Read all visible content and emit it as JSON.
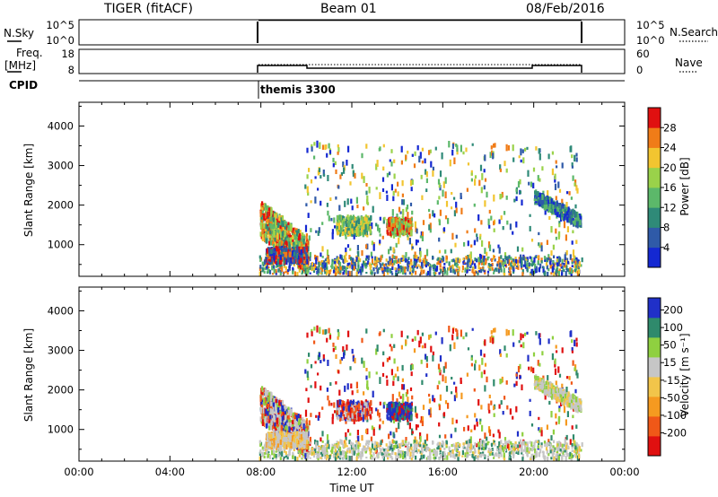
{
  "header": {
    "title": "TIGER (fitACF)",
    "beam": "Beam 01",
    "date": "08/Feb/2016"
  },
  "nsky_panel": {
    "left_label": "N.Sky",
    "right_label": "N.Search",
    "left_ticks": [
      "10^5",
      "10^0"
    ],
    "right_ticks": [
      "10^5",
      "10^0"
    ]
  },
  "freq_panel": {
    "left_label_line1": "Freq.",
    "left_label_line2": "[MHz]",
    "right_label": "Nave",
    "left_ticks": [
      "18",
      "8"
    ],
    "right_ticks": [
      "60",
      "0"
    ]
  },
  "cpid": {
    "label": "CPID",
    "program": "themis 3300"
  },
  "colors": {
    "power_scale": [
      "#1428d2",
      "#2f5aa8",
      "#2f8a78",
      "#5cb86a",
      "#9ad24a",
      "#f2c530",
      "#f07c18",
      "#e01010"
    ],
    "velocity_scale": [
      "#e01010",
      "#f05818",
      "#f59a20",
      "#f2c54a",
      "#c6c6c6",
      "#8fd040",
      "#2f8a6c",
      "#2030c8"
    ]
  },
  "chart_data": [
    {
      "type": "heatmap",
      "name": "power",
      "ylabel": "Slant Range [km]",
      "xlabel": "",
      "yticks": [
        "1000",
        "2000",
        "3000",
        "4000"
      ],
      "ylim": [
        200,
        4600
      ],
      "xlim": [
        0,
        24
      ],
      "colorbar_label": "Power [dB]",
      "colorbar_ticks": [
        "4",
        "8",
        "12",
        "16",
        "20",
        "24",
        "28"
      ],
      "clim": [
        0,
        32
      ],
      "data_start_hour": 7.9,
      "data_end_hour": 22.1
    },
    {
      "type": "heatmap",
      "name": "velocity",
      "ylabel": "Slant Range [km]",
      "xlabel": "Time UT",
      "xticks": [
        "00:00",
        "04:00",
        "08:00",
        "12:00",
        "16:00",
        "20:00",
        "00:00"
      ],
      "yticks": [
        "1000",
        "2000",
        "3000",
        "4000"
      ],
      "ylim": [
        200,
        4600
      ],
      "xlim": [
        0,
        24
      ],
      "colorbar_label": "Velocity [m s⁻¹]",
      "colorbar_ticks": [
        "200",
        "100",
        "50",
        "15",
        "-15",
        "-50",
        "-100",
        "-200"
      ],
      "clim": [
        -250,
        250
      ],
      "data_start_hour": 7.9,
      "data_end_hour": 22.1
    }
  ]
}
